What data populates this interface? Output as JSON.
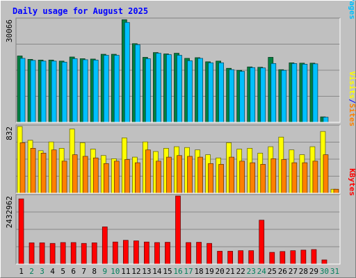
{
  "chart_data": {
    "type": "bar",
    "title": "Daily usage for August 2025",
    "colors": {
      "frame_bg": "#c0c0c0",
      "plot_bg": "#c0c0c0",
      "grid": "#888888",
      "title": "#0000ff",
      "hits": "#008040",
      "files": "#00c0ff",
      "pages": "#00c0ff",
      "visits": "#ffff00",
      "sites": "#ff8000",
      "kbytes": "#ff0000",
      "weekday_label": "#000000",
      "weekend_label": "#00805c",
      "separator": "#0000ff"
    },
    "x_labels": [
      "1",
      "2",
      "3",
      "4",
      "5",
      "6",
      "7",
      "8",
      "9",
      "10",
      "11",
      "12",
      "13",
      "14",
      "15",
      "16",
      "17",
      "18",
      "19",
      "20",
      "21",
      "22",
      "23",
      "24",
      "25",
      "26",
      "27",
      "28",
      "29",
      "30",
      "31"
    ],
    "weekend_days": [
      "2",
      "3",
      "9",
      "10",
      "16",
      "17",
      "23",
      "24",
      "30",
      "31"
    ],
    "panels": [
      {
        "id": "hits-files-pages",
        "max_label": "30066",
        "ymax": 30066,
        "grid_values": [
          7517,
          15033,
          22550
        ],
        "legend": [
          {
            "text": "Pages",
            "color": "#00c0ff"
          },
          {
            "text": "/",
            "color": "#0000ff"
          },
          {
            "text": "Files",
            "color": "#0000ff"
          },
          {
            "text": "/",
            "color": "#0000ff"
          },
          {
            "text": "Hits",
            "color": "#008040"
          }
        ],
        "series": [
          {
            "key": "hits",
            "values": [
              19400,
              18400,
              18200,
              18200,
              17900,
              19100,
              18600,
              18500,
              19900,
              19900,
              30000,
              23000,
              19000,
              20400,
              20000,
              20200,
              18700,
              18900,
              17700,
              17900,
              15800,
              15200,
              16200,
              16100,
              19000,
              15400,
              17400,
              17300,
              17300,
              1600,
              0
            ]
          },
          {
            "key": "files",
            "values": [
              18700,
              18100,
              17900,
              17900,
              17600,
              18600,
              18300,
              18200,
              19600,
              19600,
              29200,
              22700,
              18600,
              20200,
              19800,
              19600,
              18000,
              18700,
              17400,
              17400,
              15400,
              14900,
              16000,
              15900,
              17200,
              15200,
              17200,
              17000,
              17100,
              1500,
              0
            ]
          }
        ]
      },
      {
        "id": "visits-sites",
        "max_label": "832",
        "ymax": 832,
        "grid_values": [
          208,
          416,
          624
        ],
        "legend": [
          {
            "text": "Sites",
            "color": "#ff8000"
          },
          {
            "text": "/",
            "color": "#0000ff"
          },
          {
            "text": "Visits",
            "color": "#ffff00"
          }
        ],
        "series": [
          {
            "key": "visits",
            "values": [
              832,
              660,
              530,
              640,
              560,
              800,
              630,
              550,
              470,
              430,
              690,
              450,
              640,
              520,
              560,
              580,
              570,
              540,
              480,
              440,
              630,
              550,
              560,
              500,
              580,
              700,
              540,
              480,
              580,
              770,
              50
            ]
          },
          {
            "key": "sites",
            "values": [
              630,
              560,
              500,
              540,
              400,
              480,
              460,
              440,
              370,
              400,
              420,
              380,
              540,
              400,
              450,
              470,
              460,
              450,
              370,
              360,
              450,
              400,
              380,
              360,
              430,
              420,
              380,
              380,
              400,
              480,
              50
            ]
          }
        ]
      },
      {
        "id": "kbytes",
        "max_label": "2432962",
        "ymax": 2432962,
        "grid_values": [
          608241,
          1216481,
          1824722
        ],
        "legend": [
          {
            "text": "KBytes",
            "color": "#ff0000"
          }
        ],
        "series": [
          {
            "key": "kbytes",
            "values": [
              2330000,
              760000,
              760000,
              740000,
              770000,
              770000,
              740000,
              760000,
              1330000,
              790000,
              850000,
              830000,
              790000,
              770000,
              780000,
              2432962,
              770000,
              780000,
              740000,
              460000,
              460000,
              480000,
              480000,
              1570000,
              420000,
              450000,
              480000,
              500000,
              520000,
              150000,
              0
            ]
          }
        ]
      }
    ]
  }
}
